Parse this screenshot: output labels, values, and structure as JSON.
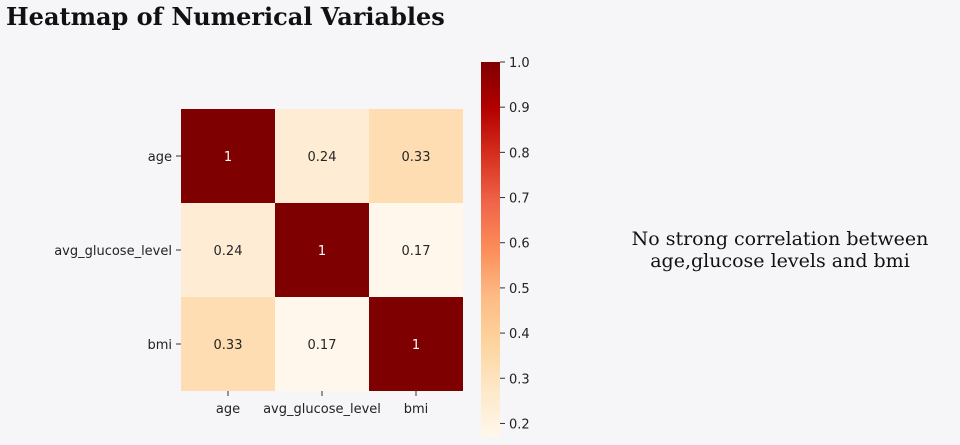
{
  "title": "Heatmap of Numerical Variables",
  "annotation": {
    "line1": "No strong correlation between",
    "line2": "age,glucose levels and bmi"
  },
  "chart_data": {
    "type": "heatmap",
    "title": "Heatmap of Numerical Variables",
    "x_categories": [
      "age",
      "avg_glucose_level",
      "bmi"
    ],
    "y_categories": [
      "age",
      "avg_glucose_level",
      "bmi"
    ],
    "matrix": [
      [
        1,
        0.24,
        0.33
      ],
      [
        0.24,
        1,
        0.17
      ],
      [
        0.33,
        0.17,
        1
      ]
    ],
    "cell_labels": [
      [
        "1",
        "0.24",
        "0.33"
      ],
      [
        "0.24",
        "1",
        "0.17"
      ],
      [
        "0.33",
        "0.17",
        "1"
      ]
    ],
    "colormap": "OrRd",
    "colorbar": {
      "range": [
        0.17,
        1.0
      ],
      "ticks": [
        0.2,
        0.3,
        0.4,
        0.5,
        0.6,
        0.7,
        0.8,
        0.9,
        1.0
      ],
      "tick_labels": [
        "0.2",
        "0.3",
        "0.4",
        "0.5",
        "0.6",
        "0.7",
        "0.8",
        "0.9",
        "1.0"
      ]
    },
    "colors": {
      "low": "#fff7ec",
      "high": "#7f0000",
      "stops": [
        "#fff7ec",
        "#fee8c8",
        "#fdd49e",
        "#fdbb84",
        "#fc8d59",
        "#ef6548",
        "#d7301f",
        "#b30000",
        "#7f0000"
      ]
    }
  }
}
